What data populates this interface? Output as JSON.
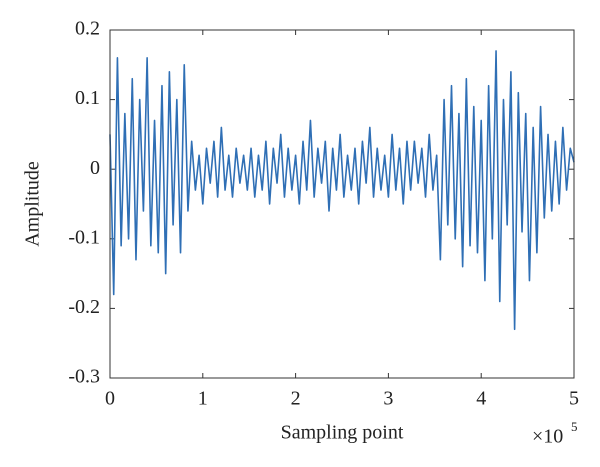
{
  "chart_data": {
    "type": "line",
    "y_label": "Amplitude",
    "x_label": "Sampling point",
    "x_multiplier": {
      "base": "×10",
      "exponent": "5"
    },
    "xlim": [
      0,
      5
    ],
    "xticks": [
      0,
      1,
      2,
      3,
      4,
      5
    ],
    "ylim": [
      -0.3,
      0.2
    ],
    "yticks": [
      -0.3,
      -0.2,
      -0.1,
      0,
      0.1,
      0.2
    ],
    "grid": false,
    "series": [
      {
        "color": "#2f6fb5",
        "x": [
          0,
          0.04,
          0.08,
          0.12,
          0.16,
          0.2,
          0.24,
          0.28,
          0.32,
          0.36,
          0.4,
          0.44,
          0.48,
          0.52,
          0.56,
          0.6,
          0.64,
          0.68,
          0.72,
          0.76,
          0.8,
          0.84,
          0.88,
          0.92,
          0.96,
          1,
          1.04,
          1.08,
          1.12,
          1.16,
          1.2,
          1.24,
          1.28,
          1.32,
          1.36,
          1.4,
          1.44,
          1.48,
          1.52,
          1.56,
          1.6,
          1.64,
          1.68,
          1.72,
          1.76,
          1.8,
          1.84,
          1.88,
          1.92,
          1.96,
          2,
          2.04,
          2.08,
          2.12,
          2.16,
          2.2,
          2.24,
          2.28,
          2.32,
          2.36,
          2.4,
          2.44,
          2.48,
          2.52,
          2.56,
          2.6,
          2.64,
          2.68,
          2.72,
          2.76,
          2.8,
          2.84,
          2.88,
          2.92,
          2.96,
          3,
          3.04,
          3.08,
          3.12,
          3.16,
          3.2,
          3.24,
          3.28,
          3.32,
          3.36,
          3.4,
          3.44,
          3.48,
          3.52,
          3.56,
          3.6,
          3.64,
          3.68,
          3.72,
          3.76,
          3.8,
          3.84,
          3.88,
          3.92,
          3.96,
          4,
          4.04,
          4.08,
          4.12,
          4.16,
          4.2,
          4.24,
          4.28,
          4.32,
          4.36,
          4.4,
          4.44,
          4.48,
          4.52,
          4.56,
          4.6,
          4.64,
          4.68,
          4.72,
          4.76,
          4.8,
          4.84,
          4.88,
          4.92,
          4.96,
          5
        ],
        "values": [
          0.05,
          -0.18,
          0.16,
          -0.11,
          0.08,
          -0.1,
          0.13,
          -0.13,
          0.1,
          -0.06,
          0.16,
          -0.11,
          0.07,
          -0.12,
          0.12,
          -0.15,
          0.14,
          -0.08,
          0.1,
          -0.12,
          0.15,
          -0.06,
          0.04,
          -0.03,
          0.02,
          -0.05,
          0.03,
          -0.02,
          0.04,
          -0.04,
          0.06,
          -0.03,
          0.02,
          -0.04,
          0.03,
          -0.02,
          0.02,
          -0.03,
          0.03,
          -0.04,
          0.02,
          -0.03,
          0.04,
          -0.05,
          0.03,
          -0.02,
          0.05,
          -0.04,
          0.03,
          -0.03,
          0.02,
          -0.05,
          0.04,
          -0.03,
          0.07,
          -0.04,
          0.03,
          -0.02,
          0.04,
          -0.06,
          0.03,
          -0.03,
          0.05,
          -0.04,
          0.02,
          -0.03,
          0.03,
          -0.05,
          0.04,
          -0.02,
          0.06,
          -0.04,
          0.03,
          -0.03,
          0.02,
          -0.04,
          0.05,
          -0.03,
          0.03,
          -0.05,
          0.04,
          -0.03,
          0.04,
          -0.02,
          0.03,
          -0.04,
          0.05,
          -0.03,
          0.02,
          -0.13,
          0.1,
          -0.08,
          0.12,
          -0.1,
          0.08,
          -0.14,
          0.13,
          -0.11,
          0.09,
          -0.12,
          0.07,
          -0.16,
          0.12,
          -0.1,
          0.17,
          -0.19,
          0.1,
          -0.08,
          0.14,
          -0.23,
          0.11,
          -0.09,
          0.08,
          -0.16,
          0.06,
          -0.12,
          0.09,
          -0.07,
          0.05,
          -0.06,
          0.04,
          -0.05,
          0.06,
          -0.03,
          0.03,
          0.01
        ]
      }
    ]
  }
}
